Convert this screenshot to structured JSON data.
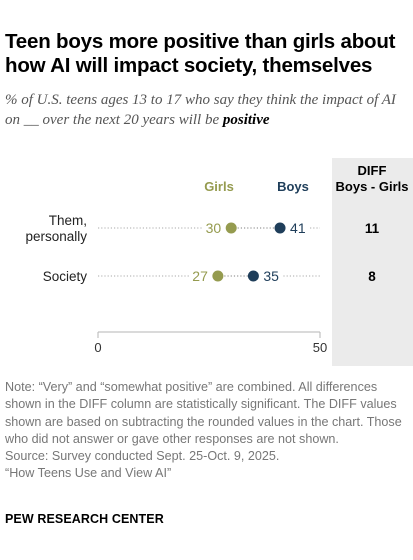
{
  "title": "Teen boys more positive than girls about how AI will impact society, themselves",
  "subtitle": {
    "lead": "% of U.S. teens ages 13 to 17 who say they think the impact of AI on __ over the next 20 years will be",
    "emphasis": "positive"
  },
  "chart_data": {
    "type": "dot_plot",
    "title": "Teen boys more positive than girls about how AI will impact society, themselves",
    "categories": [
      "Them, personally",
      "Society"
    ],
    "category_label_lines": [
      [
        "Them,",
        "personally"
      ],
      [
        "Society"
      ]
    ],
    "series": [
      {
        "name": "Girls",
        "values": [
          30,
          27
        ],
        "color": "#959b4f"
      },
      {
        "name": "Boys",
        "values": [
          41,
          35
        ],
        "color": "#1f3e5a"
      }
    ],
    "diff": {
      "header": [
        "DIFF",
        "Boys - Girls"
      ],
      "values": [
        11,
        8
      ]
    },
    "xlim": [
      0,
      50
    ],
    "xticks": [
      0,
      50
    ],
    "legend": "top, above the dots",
    "grid": false
  },
  "notes": [
    "Note: “Very” and “somewhat positive” are combined. All differences shown in the DIFF column are statistically significant. The DIFF values shown are based on subtracting the rounded values in the chart. Those who did not answer or gave other responses are not shown.",
    "Source: Survey conducted Sept. 25-Oct. 9, 2025.",
    "“How Teens Use and View AI”"
  ],
  "source_org": "PEW RESEARCH CENTER",
  "colors": {
    "girls": "#959b4f",
    "boys": "#1f3e5a",
    "diff_panel": "#ebebeb",
    "dotted_line": "#bbbbbb",
    "note_text": "#777777"
  }
}
